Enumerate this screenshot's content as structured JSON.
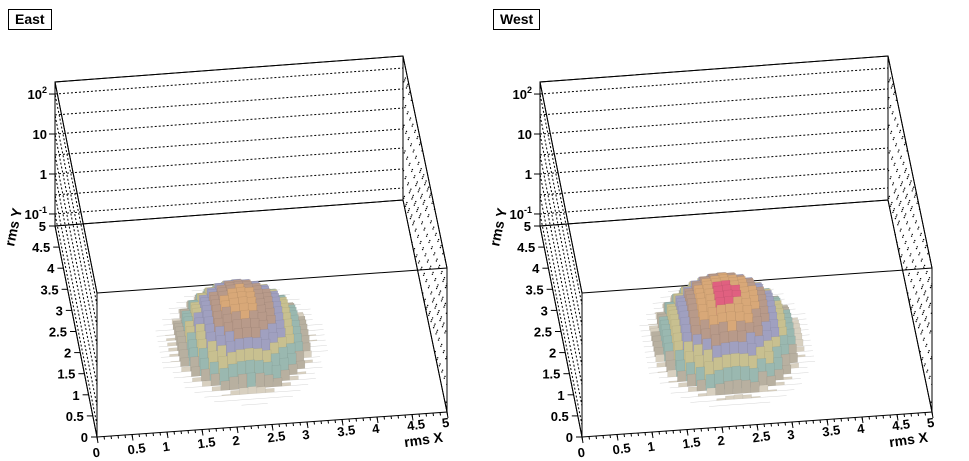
{
  "chart_data": [
    {
      "type": "lego3d",
      "title": "East",
      "xlabel": "rms X",
      "ylabel": "rms Y",
      "zscale": "log",
      "xlim": [
        0,
        5
      ],
      "ylim": [
        0,
        5
      ],
      "zlim": [
        0.05,
        200
      ],
      "x_ticks": [
        "0",
        "0.5",
        "1",
        "1.5",
        "2",
        "2.5",
        "3",
        "3.5",
        "4",
        "4.5",
        "5"
      ],
      "y_ticks": [
        "0",
        "0.5",
        "1",
        "1.5",
        "2",
        "2.5",
        "3",
        "3.5",
        "4",
        "4.5",
        "5"
      ],
      "z_ticks": [
        {
          "base": "10",
          "exp": "-1",
          "value": 0.1
        },
        {
          "base": "1",
          "exp": "",
          "value": 1
        },
        {
          "base": "10",
          "exp": "",
          "value": 10
        },
        {
          "base": "10",
          "exp": "2",
          "value": 100
        }
      ],
      "peak": {
        "x": 2.3,
        "y": 2.0,
        "z": 1.0
      },
      "grid": true
    },
    {
      "type": "lego3d",
      "title": "West",
      "xlabel": "rms X",
      "ylabel": "rms Y",
      "zscale": "log",
      "xlim": [
        0,
        5
      ],
      "ylim": [
        0,
        5
      ],
      "zlim": [
        0.05,
        200
      ],
      "x_ticks": [
        "0",
        "0.5",
        "1",
        "1.5",
        "2",
        "2.5",
        "3",
        "3.5",
        "4",
        "4.5",
        "5"
      ],
      "y_ticks": [
        "0",
        "0.5",
        "1",
        "1.5",
        "2",
        "2.5",
        "3",
        "3.5",
        "4",
        "4.5",
        "5"
      ],
      "z_ticks": [
        {
          "base": "10",
          "exp": "-1",
          "value": 0.1
        },
        {
          "base": "1",
          "exp": "",
          "value": 1
        },
        {
          "base": "10",
          "exp": "",
          "value": 10
        },
        {
          "base": "10",
          "exp": "2",
          "value": 100
        }
      ],
      "peak": {
        "x": 2.3,
        "y": 2.0,
        "z": 1.5
      },
      "grid": true
    }
  ],
  "colors": {
    "band_palette": [
      "#d8d0c0",
      "#b8b0a0",
      "#9ab8b0",
      "#c8c090",
      "#a0a0c0",
      "#b89a8a",
      "#d8a878",
      "#e06080",
      "#ee2222",
      "#ff22ff",
      "#22ee22",
      "#000000"
    ]
  }
}
